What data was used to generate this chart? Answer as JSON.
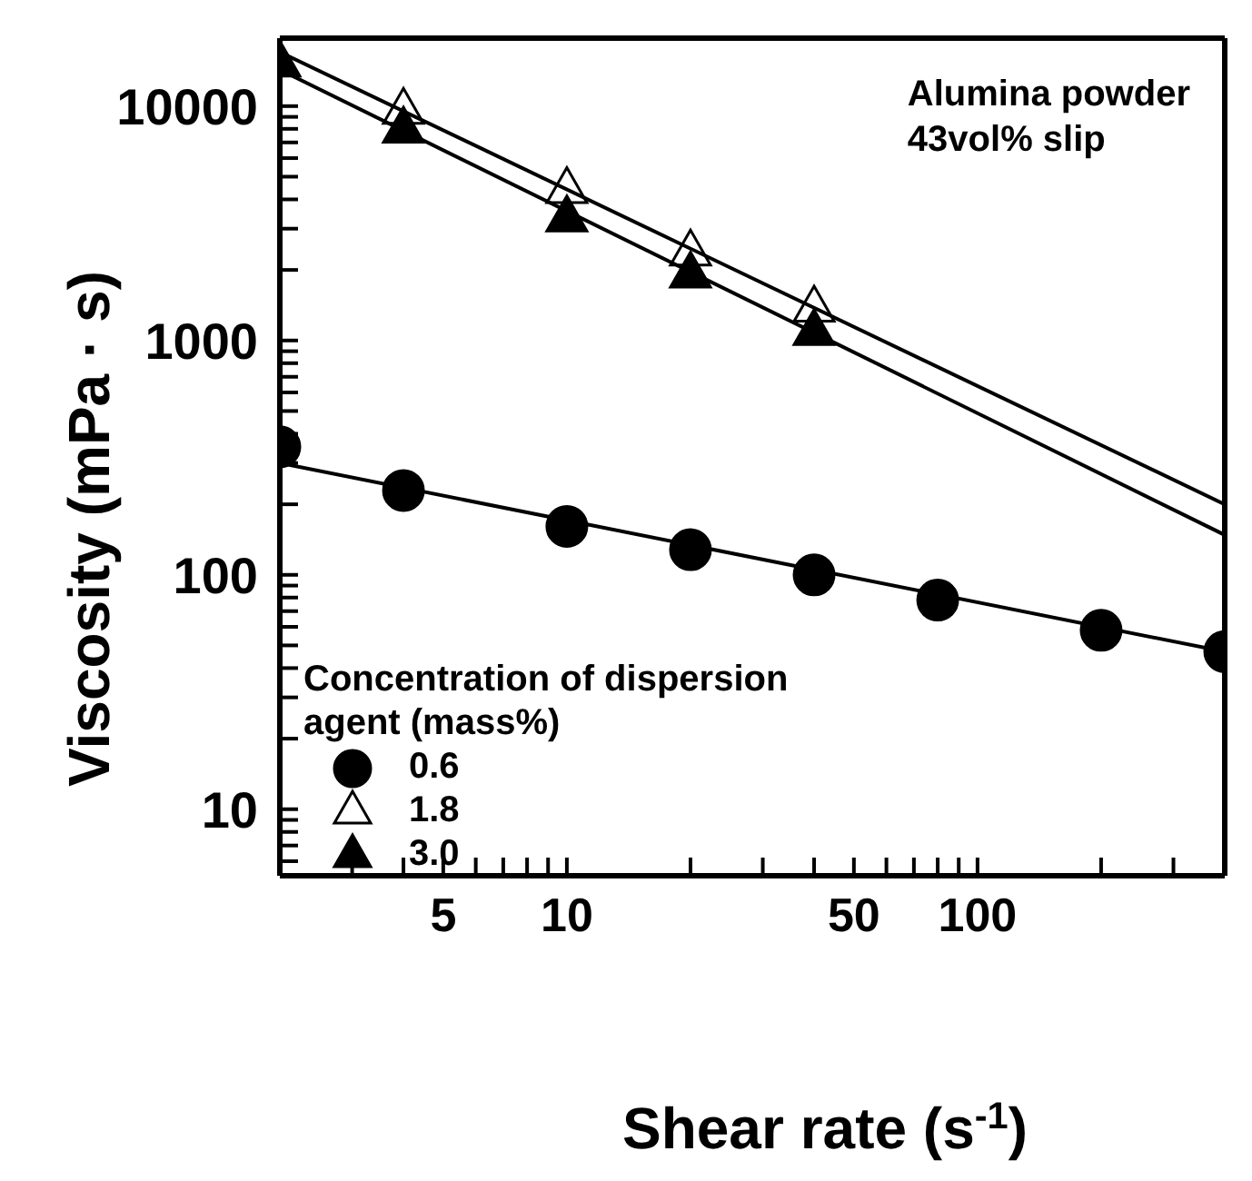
{
  "chart_data": {
    "type": "scatter",
    "xlabel": "Shear rate (s$^{-1}$)",
    "ylabel": "Viscosity (mPa · s)",
    "legend_title": "Concentration of dispersion agent (mass%)",
    "log": "xy",
    "legend": "bottom left",
    "xlim": [
      2,
      400
    ],
    "ylim": [
      5.2,
      19500
    ],
    "xticks": [
      {
        "value": 2,
        "label": null
      },
      {
        "value": 3,
        "label": null
      },
      {
        "value": 4,
        "label": null
      },
      5,
      {
        "value": 6,
        "label": null
      },
      {
        "value": 7,
        "label": null
      },
      {
        "value": 8,
        "label": null
      },
      {
        "value": 9,
        "label": null
      },
      10,
      {
        "value": 20,
        "label": null
      },
      {
        "value": 30,
        "label": null
      },
      {
        "value": 40,
        "label": null
      },
      50,
      {
        "value": 60,
        "label": null
      },
      {
        "value": 70,
        "label": null
      },
      {
        "value": 80,
        "label": null
      },
      {
        "value": 90,
        "label": null
      },
      100,
      {
        "value": 200,
        "label": null
      },
      {
        "value": 300,
        "label": null
      },
      {
        "value": 400,
        "label": null
      }
    ],
    "yticks": [
      {
        "value": 6,
        "label": null
      },
      {
        "value": 7,
        "label": null
      },
      {
        "value": 8,
        "label": null
      },
      {
        "value": 9,
        "label": null
      },
      10,
      {
        "value": 20,
        "label": null
      },
      {
        "value": 30,
        "label": null
      },
      {
        "value": 40,
        "label": null
      },
      {
        "value": 50,
        "label": null
      },
      {
        "value": 60,
        "label": null
      },
      {
        "value": 70,
        "label": null
      },
      {
        "value": 80,
        "label": null
      },
      {
        "value": 90,
        "label": null
      },
      100,
      {
        "value": 200,
        "label": null
      },
      {
        "value": 300,
        "label": null
      },
      {
        "value": 400,
        "label": null
      },
      {
        "value": 500,
        "label": null
      },
      {
        "value": 600,
        "label": null
      },
      {
        "value": 700,
        "label": null
      },
      {
        "value": 800,
        "label": null
      },
      {
        "value": 900,
        "label": null
      },
      1000,
      {
        "value": 2000,
        "label": null
      },
      {
        "value": 3000,
        "label": null
      },
      {
        "value": 4000,
        "label": null
      },
      {
        "value": 5000,
        "label": null
      },
      {
        "value": 6000,
        "label": null
      },
      {
        "value": 7000,
        "label": null
      },
      {
        "value": 8000,
        "label": null
      },
      {
        "value": 9000,
        "label": null
      },
      10000
    ],
    "annotations": [
      "Alumina powder",
      "43vol% slip"
    ],
    "series": [
      {
        "name": "0.6",
        "marker": "circle",
        "color": "#000000",
        "x": [
          2,
          4,
          10,
          20,
          40,
          80,
          200,
          400
        ],
        "values": [
          352,
          229,
          161,
          128,
          100,
          78,
          58,
          47
        ]
      },
      {
        "name": "1.8",
        "marker": "triangle",
        "color": "#ffffff",
        "x": [
          4,
          10,
          20,
          40
        ],
        "values": [
          9500,
          4360,
          2360,
          1360
        ]
      },
      {
        "name": "3.0",
        "marker": "triangle",
        "color": "#000000",
        "x": [
          2,
          4,
          10,
          20,
          40
        ],
        "values": [
          15100,
          7900,
          3300,
          1900,
          1080
        ]
      },
      {
        "type": "line",
        "marker": "none",
        "color": "#000000",
        "x": [
          2,
          400
        ],
        "values": [
          300,
          47
        ]
      },
      {
        "type": "line",
        "marker": "none",
        "color": "#000000",
        "x": [
          2,
          400
        ],
        "values": [
          17000,
          200
        ]
      },
      {
        "type": "line",
        "marker": "none",
        "color": "#000000",
        "x": [
          2,
          400
        ],
        "values": [
          14300,
          148
        ]
      }
    ]
  }
}
